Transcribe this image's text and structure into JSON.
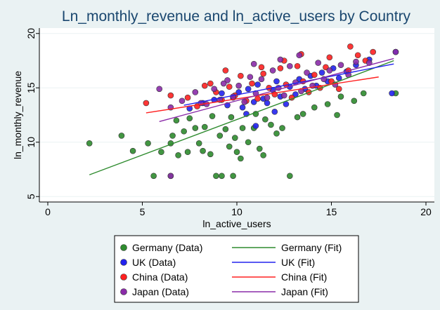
{
  "chart_data": {
    "type": "scatter",
    "title": "Ln_monthly_revenue and ln_active_users by Country",
    "xlabel": "ln_active_users",
    "ylabel": "ln_monthly_revenue",
    "xlim": [
      0,
      20
    ],
    "ylim": [
      4.5,
      20.5
    ],
    "xticks": [
      0,
      5,
      10,
      15,
      20
    ],
    "yticks": [
      5,
      10,
      15,
      20
    ],
    "grid": "horizontal",
    "legend_position": "bottom",
    "colors": {
      "Germany": "#2E8B2E",
      "UK": "#2222EE",
      "China": "#FF2020",
      "Japan": "#8A2BA8"
    },
    "legend": [
      [
        "Germany (Data)",
        "Germany (Fit)"
      ],
      [
        "UK (Data)",
        "UK (Fit)"
      ],
      [
        "China (Data)",
        "China (Fit)"
      ],
      [
        "Japan (Data)",
        "Japan (Fit)"
      ]
    ],
    "series": [
      {
        "name": "Germany (Data)",
        "country": "Germany",
        "points": [
          [
            2.2,
            9.9
          ],
          [
            3.9,
            10.6
          ],
          [
            4.5,
            9.2
          ],
          [
            5.3,
            9.9
          ],
          [
            5.6,
            6.9
          ],
          [
            6.0,
            9.1
          ],
          [
            6.5,
            9.9
          ],
          [
            6.5,
            6.9
          ],
          [
            6.6,
            10.6
          ],
          [
            6.9,
            8.8
          ],
          [
            7.2,
            11.0
          ],
          [
            7.4,
            9.1
          ],
          [
            7.5,
            12.2
          ],
          [
            7.8,
            11.3
          ],
          [
            8.0,
            9.9
          ],
          [
            8.2,
            9.2
          ],
          [
            8.3,
            11.4
          ],
          [
            8.6,
            8.9
          ],
          [
            8.7,
            12.4
          ],
          [
            8.9,
            6.9
          ],
          [
            9.1,
            10.6
          ],
          [
            9.2,
            6.9
          ],
          [
            9.4,
            11.2
          ],
          [
            9.6,
            9.6
          ],
          [
            9.8,
            6.9
          ],
          [
            9.9,
            10.4
          ],
          [
            10.0,
            9.1
          ],
          [
            10.2,
            8.5
          ],
          [
            10.3,
            11.3
          ],
          [
            10.6,
            10.0
          ],
          [
            10.9,
            11.3
          ],
          [
            11.2,
            9.4
          ],
          [
            11.4,
            8.8
          ],
          [
            11.5,
            12.1
          ],
          [
            11.8,
            11.6
          ],
          [
            12.1,
            10.8
          ],
          [
            12.4,
            11.3
          ],
          [
            12.8,
            6.9
          ],
          [
            13.2,
            12.3
          ],
          [
            13.5,
            12.6
          ],
          [
            14.1,
            13.2
          ],
          [
            14.8,
            13.5
          ],
          [
            15.3,
            12.5
          ],
          [
            15.5,
            14.2
          ],
          [
            16.2,
            13.8
          ],
          [
            16.7,
            14.5
          ],
          [
            18.4,
            14.5
          ],
          [
            6.8,
            12.0
          ],
          [
            9.7,
            12.3
          ],
          [
            11.0,
            12.6
          ]
        ]
      },
      {
        "name": "UK (Data)",
        "country": "UK",
        "points": [
          [
            7.5,
            13.1
          ],
          [
            8.2,
            13.6
          ],
          [
            8.8,
            13.9
          ],
          [
            9.2,
            14.5
          ],
          [
            9.5,
            13.4
          ],
          [
            9.8,
            14.1
          ],
          [
            10.1,
            14.6
          ],
          [
            10.3,
            13.2
          ],
          [
            10.6,
            14.9
          ],
          [
            10.9,
            13.7
          ],
          [
            11.1,
            15.3
          ],
          [
            11.4,
            14.0
          ],
          [
            11.6,
            13.6
          ],
          [
            11.9,
            14.8
          ],
          [
            12.1,
            15.6
          ],
          [
            12.3,
            14.2
          ],
          [
            12.6,
            13.5
          ],
          [
            12.8,
            15.1
          ],
          [
            13.1,
            14.4
          ],
          [
            13.3,
            15.8
          ],
          [
            13.6,
            14.9
          ],
          [
            13.9,
            16.1
          ],
          [
            14.2,
            15.2
          ],
          [
            14.5,
            16.4
          ],
          [
            14.8,
            15.6
          ],
          [
            15.1,
            16.8
          ],
          [
            15.4,
            15.9
          ],
          [
            15.8,
            16.5
          ],
          [
            16.3,
            17.1
          ],
          [
            17.0,
            17.6
          ],
          [
            18.2,
            14.5
          ],
          [
            18.4,
            18.3
          ],
          [
            11.0,
            11.5
          ],
          [
            12.0,
            12.8
          ],
          [
            10.5,
            12.6
          ]
        ]
      },
      {
        "name": "China (Data)",
        "country": "China",
        "points": [
          [
            5.2,
            13.6
          ],
          [
            6.5,
            14.3
          ],
          [
            7.4,
            14.1
          ],
          [
            7.9,
            13.3
          ],
          [
            8.3,
            15.2
          ],
          [
            8.6,
            15.4
          ],
          [
            8.9,
            14.6
          ],
          [
            9.2,
            13.9
          ],
          [
            9.6,
            15.1
          ],
          [
            9.9,
            14.3
          ],
          [
            10.2,
            16.1
          ],
          [
            10.5,
            13.8
          ],
          [
            10.8,
            15.4
          ],
          [
            11.1,
            14.0
          ],
          [
            11.4,
            16.3
          ],
          [
            11.7,
            15.0
          ],
          [
            12.0,
            14.4
          ],
          [
            12.3,
            16.8
          ],
          [
            12.6,
            15.3
          ],
          [
            12.9,
            14.1
          ],
          [
            13.2,
            17.0
          ],
          [
            13.5,
            15.6
          ],
          [
            13.8,
            14.6
          ],
          [
            14.1,
            16.2
          ],
          [
            14.4,
            15.0
          ],
          [
            14.7,
            16.9
          ],
          [
            15.0,
            15.6
          ],
          [
            15.4,
            14.9
          ],
          [
            15.9,
            16.6
          ],
          [
            16.4,
            18.0
          ],
          [
            16.8,
            17.5
          ],
          [
            17.2,
            18.3
          ],
          [
            16.0,
            18.8
          ],
          [
            13.4,
            18.1
          ],
          [
            14.9,
            17.8
          ],
          [
            12.5,
            17.5
          ],
          [
            11.3,
            16.9
          ],
          [
            9.4,
            16.6
          ]
        ]
      },
      {
        "name": "Japan (Data)",
        "country": "Japan",
        "points": [
          [
            5.9,
            14.9
          ],
          [
            6.5,
            13.2
          ],
          [
            6.5,
            6.9
          ],
          [
            7.1,
            13.8
          ],
          [
            7.8,
            14.6
          ],
          [
            8.4,
            13.5
          ],
          [
            8.8,
            14.9
          ],
          [
            9.1,
            13.9
          ],
          [
            9.5,
            15.7
          ],
          [
            9.8,
            14.2
          ],
          [
            10.1,
            15.2
          ],
          [
            10.4,
            13.7
          ],
          [
            10.7,
            16.0
          ],
          [
            11.0,
            14.5
          ],
          [
            11.3,
            15.8
          ],
          [
            11.6,
            14.1
          ],
          [
            11.9,
            16.6
          ],
          [
            12.2,
            15.0
          ],
          [
            12.5,
            14.3
          ],
          [
            12.8,
            17.0
          ],
          [
            13.1,
            15.5
          ],
          [
            13.4,
            14.7
          ],
          [
            13.7,
            16.4
          ],
          [
            14.0,
            15.2
          ],
          [
            14.3,
            17.3
          ],
          [
            14.6,
            15.8
          ],
          [
            14.9,
            16.6
          ],
          [
            15.2,
            15.3
          ],
          [
            15.5,
            17.1
          ],
          [
            15.9,
            16.2
          ],
          [
            16.3,
            17.4
          ],
          [
            17.0,
            17.3
          ],
          [
            18.4,
            18.3
          ],
          [
            12.3,
            17.6
          ],
          [
            13.3,
            18.0
          ],
          [
            10.9,
            17.2
          ],
          [
            8.1,
            13.6
          ],
          [
            9.3,
            15.4
          ]
        ]
      },
      {
        "name": "Germany (Fit)",
        "country": "Germany",
        "line": [
          [
            2.2,
            7.0
          ],
          [
            18.3,
            17.5
          ]
        ]
      },
      {
        "name": "UK (Fit)",
        "country": "UK",
        "line": [
          [
            7.2,
            13.4
          ],
          [
            18.3,
            17.2
          ]
        ]
      },
      {
        "name": "China (Fit)",
        "country": "China",
        "line": [
          [
            5.2,
            12.7
          ],
          [
            17.5,
            16.0
          ]
        ]
      },
      {
        "name": "Japan (Fit)",
        "country": "Japan",
        "line": [
          [
            5.9,
            11.9
          ],
          [
            18.3,
            17.7
          ]
        ]
      }
    ]
  }
}
